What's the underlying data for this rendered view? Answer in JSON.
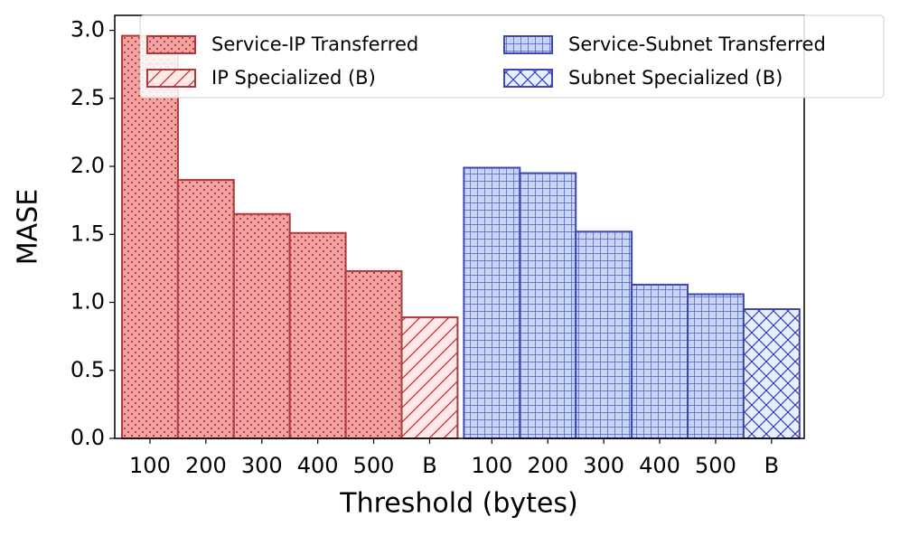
{
  "chart_data": {
    "type": "bar",
    "x_label": "Threshold (bytes)",
    "y_label": "MASE",
    "categories": [
      "100",
      "200",
      "300",
      "400",
      "500",
      "B",
      "100",
      "200",
      "300",
      "400",
      "500",
      "B"
    ],
    "series": [
      {
        "name": "Service-IP Transferred",
        "color": "#f4a3a3",
        "edgecolor": "#b03a3a",
        "hatch": "dots",
        "values": [
          2.96,
          1.9,
          1.65,
          1.51,
          1.23,
          null,
          null,
          null,
          null,
          null,
          null,
          null
        ]
      },
      {
        "name": "IP Specialized (B)",
        "color": "#fde8e8",
        "edgecolor": "#b03a3a",
        "hatch": "diag",
        "values": [
          null,
          null,
          null,
          null,
          null,
          0.89,
          null,
          null,
          null,
          null,
          null,
          null
        ]
      },
      {
        "name": "Service-Subnet Transferred",
        "color": "#c6d4f6",
        "edgecolor": "#3e47b2",
        "hatch": "grid",
        "values": [
          null,
          null,
          null,
          null,
          null,
          null,
          1.99,
          1.95,
          1.52,
          1.13,
          1.06,
          null
        ]
      },
      {
        "name": "Subnet Specialized (B)",
        "color": "#e6f0fd",
        "edgecolor": "#3e47b2",
        "hatch": "cross",
        "values": [
          null,
          null,
          null,
          null,
          null,
          null,
          null,
          null,
          null,
          null,
          null,
          0.95
        ]
      }
    ],
    "ylim": [
      0,
      3.11
    ],
    "yticks": [
      {
        "value": 0,
        "label": "0.0"
      },
      {
        "value": 0.5,
        "label": "0.5"
      },
      {
        "value": 1,
        "label": "1.0"
      },
      {
        "value": 1.5,
        "label": "1.5"
      },
      {
        "value": 2,
        "label": "2.0"
      },
      {
        "value": 2.5,
        "label": "2.5"
      },
      {
        "value": 3,
        "label": "3.0"
      }
    ],
    "legend": "upper right",
    "legend_columns": 2
  }
}
